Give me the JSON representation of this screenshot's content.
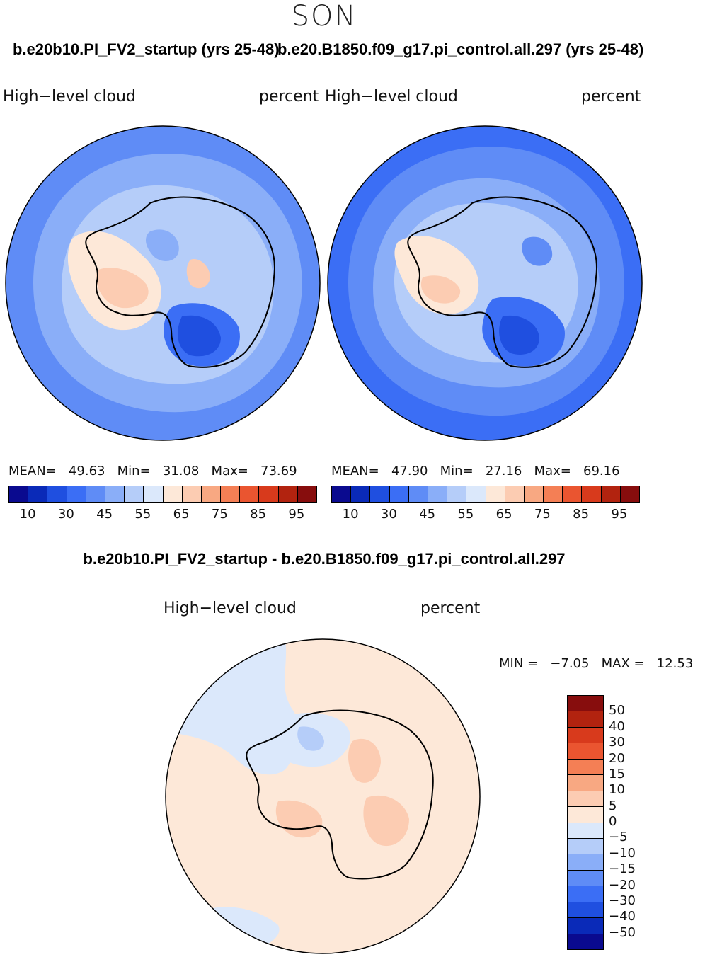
{
  "season": "SON",
  "panels": [
    {
      "case_title": "b.e20b10.PI_FV2_startup (yrs 25-48)",
      "variable": "High−level cloud",
      "units": "percent",
      "stats": {
        "mean_label": "MEAN=",
        "mean": "49.63",
        "min_label": "Min=",
        "min": "31.08",
        "max_label": "Max=",
        "max": "73.69"
      }
    },
    {
      "case_title": "b.e20.B1850.f09_g17.pi_control.all.297 (yrs 25-48)",
      "variable": "High−level cloud",
      "units": "percent",
      "stats": {
        "mean_label": "MEAN=",
        "mean": "47.90",
        "min_label": "Min=",
        "min": "27.16",
        "max_label": "Max=",
        "max": "69.16"
      }
    }
  ],
  "abs_colorbar": {
    "colors": [
      "#0a0a8f",
      "#0a2ab8",
      "#1f4fe0",
      "#3b6ef5",
      "#5f8cf6",
      "#8aaef8",
      "#b5cdf9",
      "#dbe8fb",
      "#fde8d8",
      "#fcccb2",
      "#f8a882",
      "#f47f55",
      "#ea5530",
      "#d83a1c",
      "#b2230f",
      "#870d0d"
    ],
    "ticks": [
      "10",
      "30",
      "45",
      "55",
      "65",
      "75",
      "85",
      "95"
    ]
  },
  "difference": {
    "title": "b.e20b10.PI_FV2_startup - b.e20.B1850.f09_g17.pi_control.all.297",
    "variable": "High−level cloud",
    "units": "percent",
    "min_label": "MIN =",
    "min": "−7.05",
    "max_label": "MAX =",
    "max": "12.53"
  },
  "diff_colorbar": {
    "colors": [
      "#870d0d",
      "#b2230f",
      "#d83a1c",
      "#ea5530",
      "#f47f55",
      "#f8a882",
      "#fcccb2",
      "#fde8d8",
      "#dbe8fb",
      "#b5cdf9",
      "#8aaef8",
      "#5f8cf6",
      "#3b6ef5",
      "#1f4fe0",
      "#0a2ab8",
      "#0a0a8f"
    ],
    "ticks": [
      "50",
      "40",
      "30",
      "20",
      "15",
      "10",
      "5",
      "0",
      "−5",
      "−10",
      "−15",
      "−20",
      "−30",
      "−40",
      "−50"
    ]
  }
}
